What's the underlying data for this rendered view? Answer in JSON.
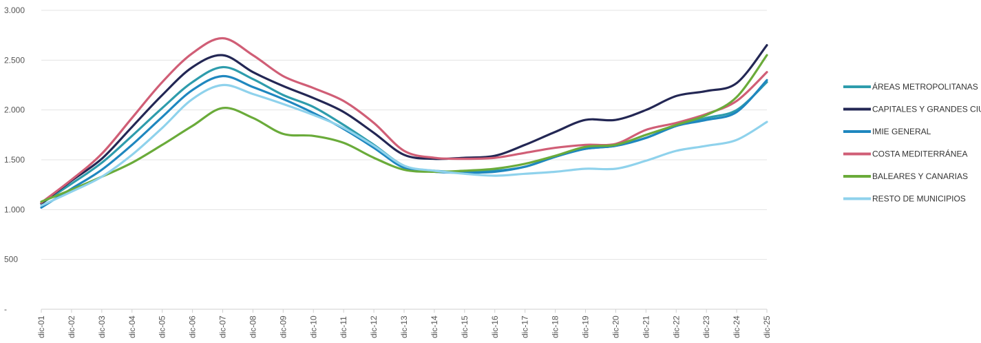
{
  "chart_data": {
    "type": "line",
    "x_tick_labels": [
      "dic-01",
      "dic-02",
      "dic-03",
      "dic-04",
      "dic-05",
      "dic-06",
      "dic-07",
      "dic-08",
      "dic-09",
      "dic-10",
      "dic-11",
      "dic-12",
      "dic-13",
      "dic-14",
      "dic-15",
      "dic-16",
      "dic-17",
      "dic-18",
      "dic-19",
      "dic-20",
      "dic-21",
      "dic-22",
      "dic-23",
      "dic-24",
      "dic-25"
    ],
    "y_tick_labels": [
      "-",
      "500",
      "1.000",
      "1.500",
      "2.000",
      "2.500",
      "3.000"
    ],
    "y_ticks": [
      0,
      500,
      1000,
      1500,
      2000,
      2500,
      3000
    ],
    "ylim": [
      0,
      3000
    ],
    "grid": "horizontal",
    "legend_position": "right",
    "series": [
      {
        "name": "ÁREAS METROPOLITANAS",
        "color": "#2e9cac",
        "values": [
          1060,
          1260,
          1470,
          1740,
          2020,
          2280,
          2430,
          2310,
          2150,
          2030,
          1850,
          1650,
          1440,
          1390,
          1380,
          1390,
          1430,
          1530,
          1610,
          1640,
          1720,
          1840,
          1920,
          2000,
          2280
        ]
      },
      {
        "name": "CAPITALES Y GRANDES CIUDADES",
        "color": "#232754",
        "values": [
          1060,
          1290,
          1510,
          1830,
          2150,
          2430,
          2550,
          2380,
          2240,
          2120,
          1980,
          1770,
          1550,
          1510,
          1520,
          1540,
          1650,
          1780,
          1900,
          1900,
          2000,
          2140,
          2190,
          2270,
          2650
        ]
      },
      {
        "name": "IMIE GENERAL",
        "color": "#1f87bf",
        "values": [
          1020,
          1210,
          1400,
          1650,
          1930,
          2200,
          2340,
          2230,
          2110,
          1970,
          1810,
          1620,
          1420,
          1380,
          1370,
          1380,
          1430,
          1530,
          1610,
          1640,
          1720,
          1840,
          1900,
          1980,
          2300
        ]
      },
      {
        "name": "COSTA MEDITERRÁNEA",
        "color": "#d05e76",
        "values": [
          1070,
          1300,
          1560,
          1920,
          2280,
          2570,
          2720,
          2550,
          2340,
          2220,
          2090,
          1870,
          1590,
          1520,
          1510,
          1520,
          1570,
          1620,
          1650,
          1660,
          1800,
          1870,
          1960,
          2090,
          2380
        ]
      },
      {
        "name": "BALEARES Y CANARIAS",
        "color": "#6aab3a",
        "values": [
          1080,
          1200,
          1330,
          1470,
          1650,
          1840,
          2020,
          1920,
          1760,
          1740,
          1670,
          1520,
          1400,
          1380,
          1390,
          1410,
          1460,
          1540,
          1630,
          1650,
          1750,
          1850,
          1950,
          2130,
          2550
        ]
      },
      {
        "name": "RESTO DE MUNICIPIOS",
        "color": "#8fd2ec",
        "values": [
          1040,
          1180,
          1330,
          1550,
          1820,
          2110,
          2250,
          2160,
          2060,
          1950,
          1820,
          1640,
          1440,
          1390,
          1360,
          1340,
          1360,
          1380,
          1410,
          1410,
          1490,
          1590,
          1640,
          1700,
          1880
        ]
      }
    ]
  }
}
